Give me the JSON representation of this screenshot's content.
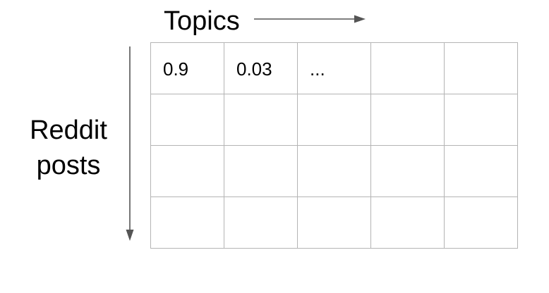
{
  "axes": {
    "columns_label": "Topics",
    "rows_label": "Reddit posts"
  },
  "colors": {
    "grid_line": "#b4b4b4",
    "arrow": "#555555",
    "text": "#000000"
  },
  "matrix": {
    "rows": [
      [
        "0.9",
        "0.03",
        "...",
        "",
        ""
      ],
      [
        "",
        "",
        "",
        "",
        ""
      ],
      [
        "",
        "",
        "",
        "",
        ""
      ],
      [
        "",
        "",
        "",
        "",
        ""
      ]
    ]
  }
}
